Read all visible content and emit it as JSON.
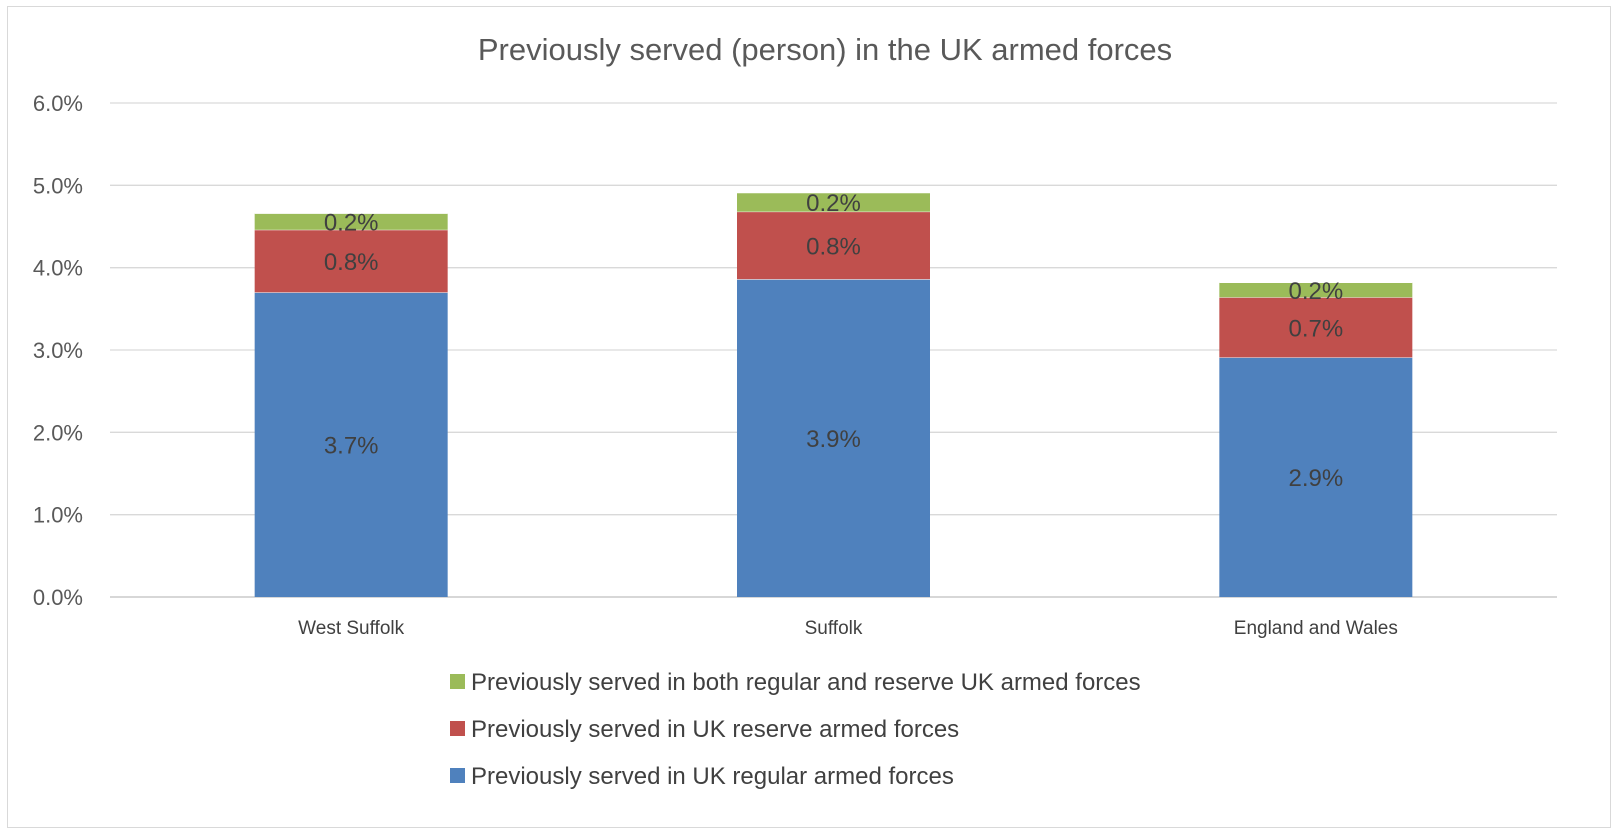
{
  "chart_data": {
    "type": "bar",
    "stacked": true,
    "title": "Previously served (person) in the UK armed forces",
    "xlabel": "",
    "ylabel": "",
    "ylim": [
      0,
      6
    ],
    "yticks": [
      "0.0%",
      "1.0%",
      "2.0%",
      "3.0%",
      "4.0%",
      "5.0%",
      "6.0%"
    ],
    "grid": true,
    "legend_position": "bottom",
    "categories": [
      "West Suffolk",
      "Suffolk",
      "England and Wales"
    ],
    "series": [
      {
        "name": "Previously served in UK regular armed forces",
        "color": "#4f81bd",
        "values": [
          3.7,
          3.86,
          2.91
        ],
        "labels": [
          "3.7%",
          "3.9%",
          "2.9%"
        ]
      },
      {
        "name": "Previously served in UK reserve armed forces",
        "color": "#c0504d",
        "values": [
          0.76,
          0.82,
          0.73
        ],
        "labels": [
          "0.8%",
          "0.8%",
          "0.7%"
        ]
      },
      {
        "name": "Previously served in both regular and reserve UK armed forces",
        "color": "#9bbb59",
        "values": [
          0.2,
          0.23,
          0.18
        ],
        "labels": [
          "0.2%",
          "0.2%",
          "0.2%"
        ]
      }
    ],
    "legend_order": [
      2,
      1,
      0
    ]
  }
}
